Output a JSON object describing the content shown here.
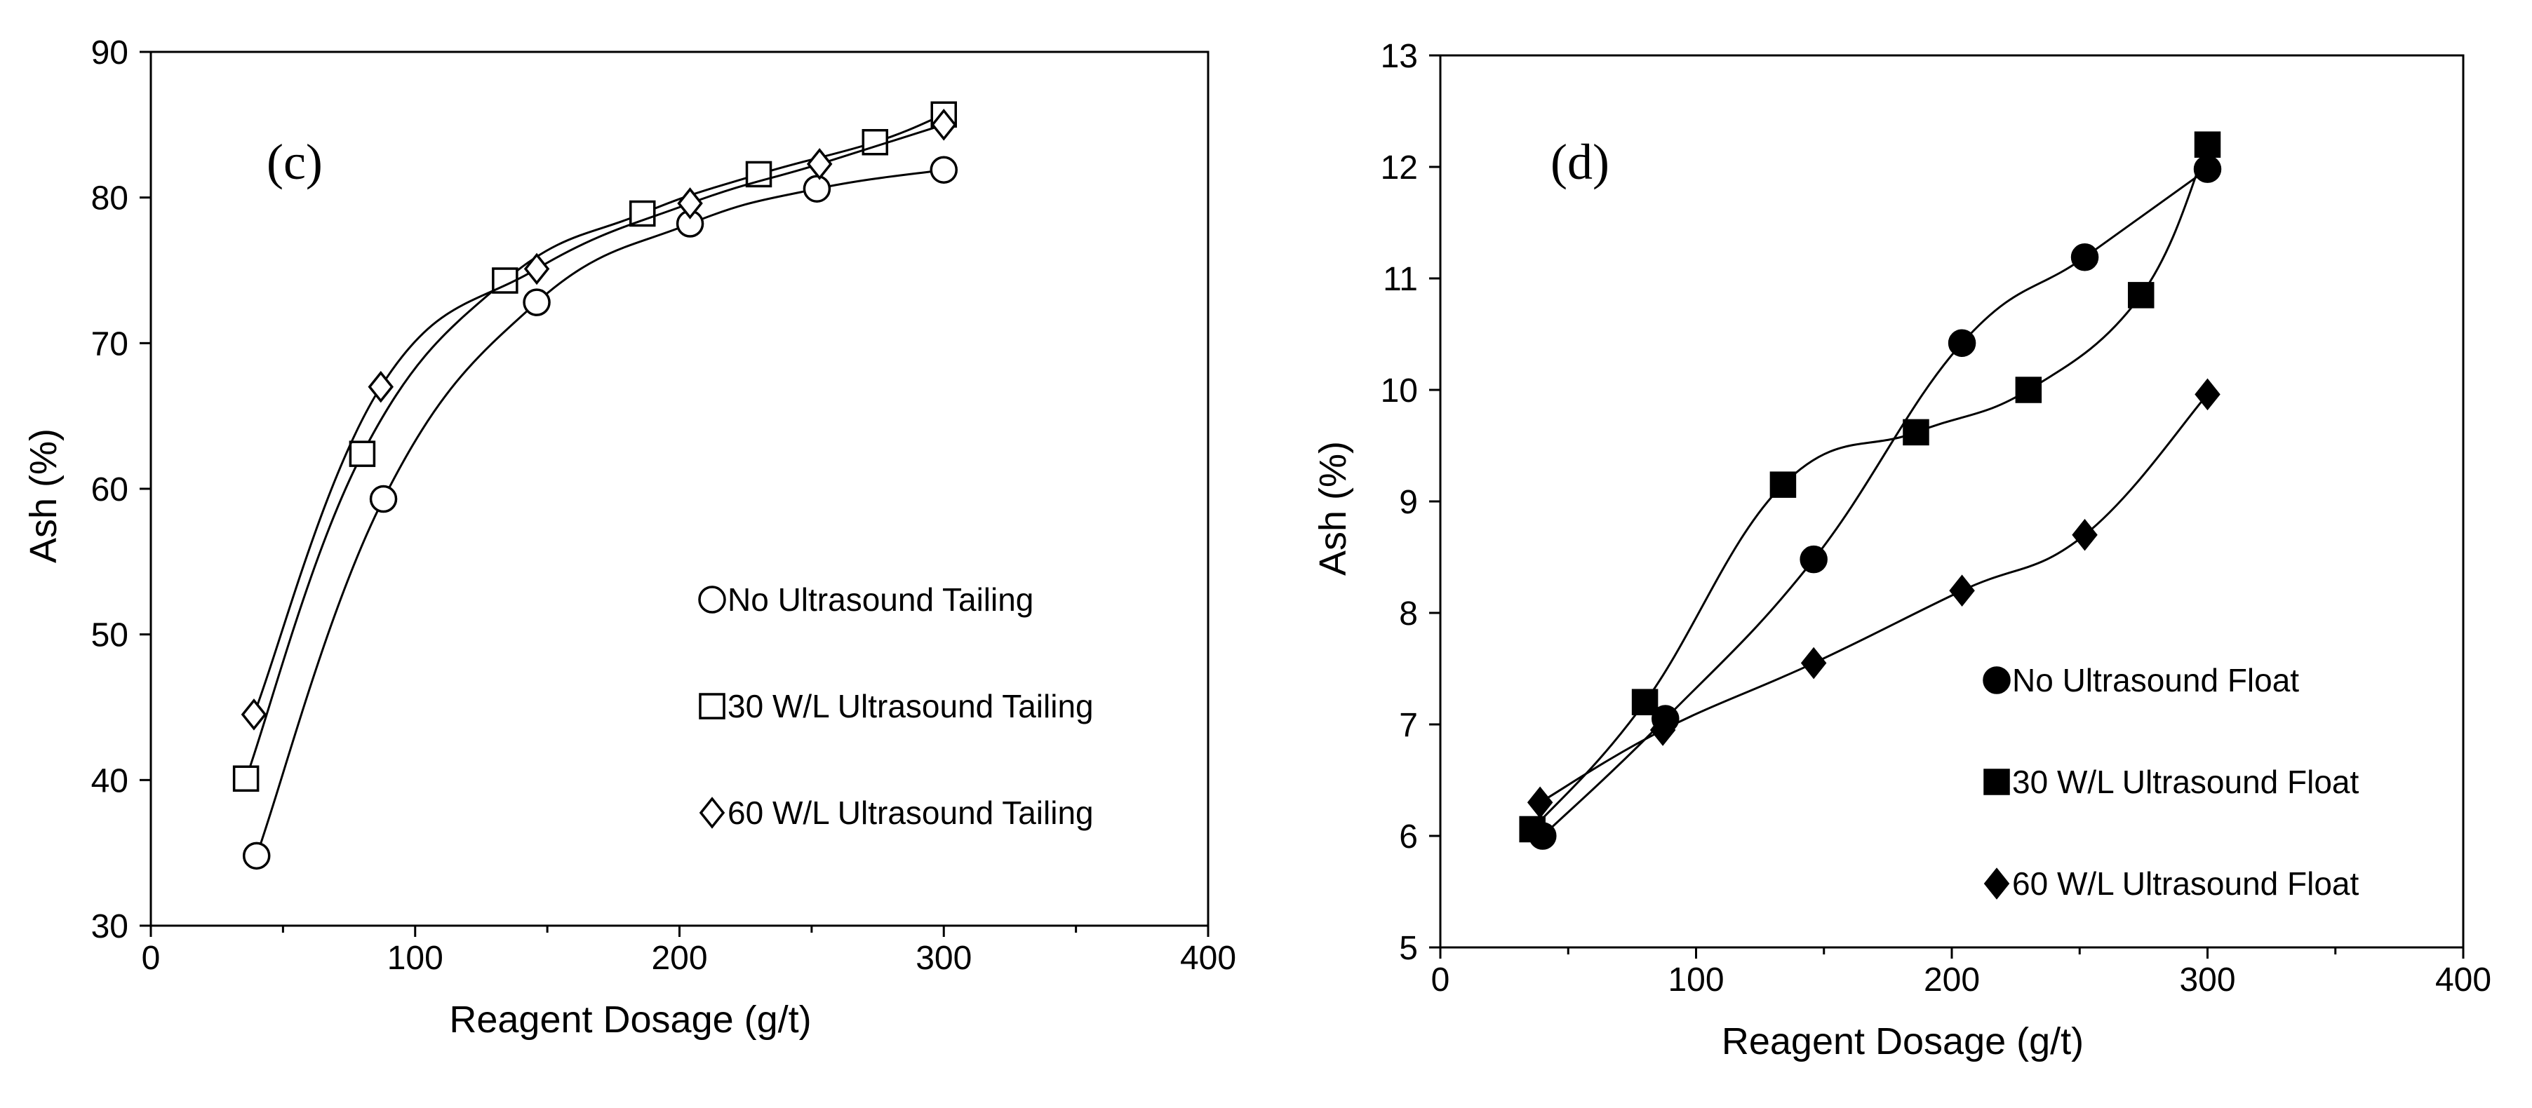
{
  "chart_data": [
    {
      "type": "scatter",
      "panel_label": "(c)",
      "xlabel": "Reagent Dosage (g/t)",
      "ylabel": "Ash (%)",
      "xlim": [
        0,
        400
      ],
      "ylim": [
        30,
        90
      ],
      "xticks": [
        0,
        100,
        200,
        300,
        400
      ],
      "yticks": [
        30,
        40,
        50,
        60,
        70,
        80,
        90
      ],
      "grid": false,
      "legend_position": "bottom-right",
      "lines": "smoothed",
      "series": [
        {
          "name": "No Ultrasound Tailing",
          "marker": "open-circle",
          "x": [
            40,
            88,
            146,
            204,
            252,
            300
          ],
          "y": [
            34.8,
            59.3,
            72.8,
            78.2,
            80.6,
            81.9
          ]
        },
        {
          "name": "30 W/L Ultrasound Tailing",
          "marker": "open-square",
          "x": [
            36,
            80,
            134,
            186,
            230,
            274,
            300
          ],
          "y": [
            40.1,
            62.4,
            74.3,
            78.9,
            81.6,
            83.8,
            85.7
          ]
        },
        {
          "name": "60 W/L Ultrasound Tailing",
          "marker": "open-diamond",
          "x": [
            39,
            87,
            146,
            204,
            253,
            300
          ],
          "y": [
            44.5,
            67.0,
            75.1,
            79.6,
            82.3,
            85.0
          ]
        }
      ]
    },
    {
      "type": "scatter",
      "panel_label": "(d)",
      "xlabel": "Reagent Dosage (g/t)",
      "ylabel": "Ash (%)",
      "xlim": [
        0,
        400
      ],
      "ylim": [
        5,
        13
      ],
      "xticks": [
        0,
        100,
        200,
        300,
        400
      ],
      "yticks": [
        5,
        6,
        7,
        8,
        9,
        10,
        11,
        12,
        13
      ],
      "grid": false,
      "legend_position": "bottom-right",
      "lines": "smoothed",
      "series": [
        {
          "name": "No Ultrasound Float",
          "marker": "filled-circle",
          "x": [
            40,
            88,
            146,
            204,
            252,
            300
          ],
          "y": [
            6.0,
            7.05,
            8.48,
            10.42,
            11.19,
            11.98
          ]
        },
        {
          "name": "30 W/L Ultrasound Float",
          "marker": "filled-square",
          "x": [
            36,
            80,
            134,
            186,
            230,
            274,
            300
          ],
          "y": [
            6.06,
            7.2,
            9.15,
            9.62,
            10.0,
            10.85,
            12.2
          ]
        },
        {
          "name": "60 W/L Ultrasound Float",
          "marker": "filled-diamond",
          "x": [
            39,
            87,
            146,
            204,
            252,
            300
          ],
          "y": [
            6.3,
            6.95,
            7.55,
            8.2,
            8.7,
            9.96
          ]
        }
      ]
    }
  ]
}
